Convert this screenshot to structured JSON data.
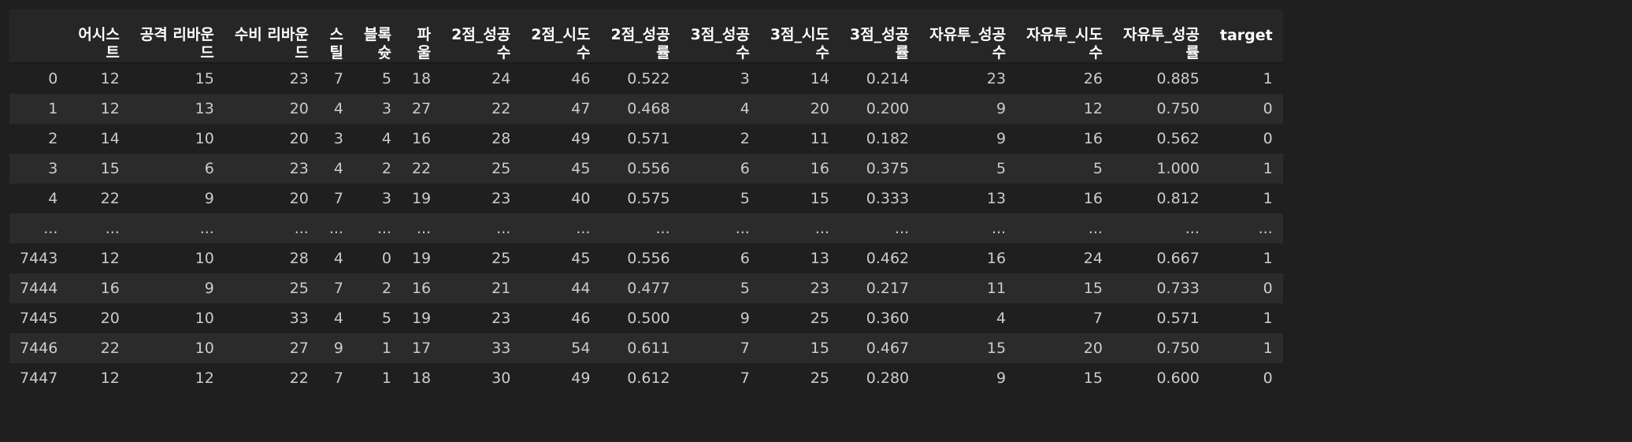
{
  "table": {
    "columns": [
      {
        "lines": [
          ""
        ]
      },
      {
        "lines": [
          "어시스",
          "트"
        ]
      },
      {
        "lines": [
          "공격 리바운",
          "드"
        ]
      },
      {
        "lines": [
          "수비 리바운",
          "드"
        ]
      },
      {
        "lines": [
          "스",
          "틸"
        ]
      },
      {
        "lines": [
          "블록",
          "슛"
        ]
      },
      {
        "lines": [
          "파",
          "울"
        ]
      },
      {
        "lines": [
          "2점_성공",
          "수"
        ]
      },
      {
        "lines": [
          "2점_시도",
          "수"
        ]
      },
      {
        "lines": [
          "2점_성공",
          "률"
        ]
      },
      {
        "lines": [
          "3점_성공",
          "수"
        ]
      },
      {
        "lines": [
          "3점_시도",
          "수"
        ]
      },
      {
        "lines": [
          "3점_성공",
          "률"
        ]
      },
      {
        "lines": [
          "자유투_성공",
          "수"
        ]
      },
      {
        "lines": [
          "자유투_시도",
          "수"
        ]
      },
      {
        "lines": [
          "자유투_성공",
          "률"
        ]
      },
      {
        "lines": [
          "target"
        ]
      }
    ],
    "rows": [
      [
        "0",
        "12",
        "15",
        "23",
        "7",
        "5",
        "18",
        "24",
        "46",
        "0.522",
        "3",
        "14",
        "0.214",
        "23",
        "26",
        "0.885",
        "1"
      ],
      [
        "1",
        "12",
        "13",
        "20",
        "4",
        "3",
        "27",
        "22",
        "47",
        "0.468",
        "4",
        "20",
        "0.200",
        "9",
        "12",
        "0.750",
        "0"
      ],
      [
        "2",
        "14",
        "10",
        "20",
        "3",
        "4",
        "16",
        "28",
        "49",
        "0.571",
        "2",
        "11",
        "0.182",
        "9",
        "16",
        "0.562",
        "0"
      ],
      [
        "3",
        "15",
        "6",
        "23",
        "4",
        "2",
        "22",
        "25",
        "45",
        "0.556",
        "6",
        "16",
        "0.375",
        "5",
        "5",
        "1.000",
        "1"
      ],
      [
        "4",
        "22",
        "9",
        "20",
        "7",
        "3",
        "19",
        "23",
        "40",
        "0.575",
        "5",
        "15",
        "0.333",
        "13",
        "16",
        "0.812",
        "1"
      ],
      [
        "...",
        "...",
        "...",
        "...",
        "...",
        "...",
        "...",
        "...",
        "...",
        "...",
        "...",
        "...",
        "...",
        "...",
        "...",
        "...",
        "..."
      ],
      [
        "7443",
        "12",
        "10",
        "28",
        "4",
        "0",
        "19",
        "25",
        "45",
        "0.556",
        "6",
        "13",
        "0.462",
        "16",
        "24",
        "0.667",
        "1"
      ],
      [
        "7444",
        "16",
        "9",
        "25",
        "7",
        "2",
        "16",
        "21",
        "44",
        "0.477",
        "5",
        "23",
        "0.217",
        "11",
        "15",
        "0.733",
        "0"
      ],
      [
        "7445",
        "20",
        "10",
        "33",
        "4",
        "5",
        "19",
        "23",
        "46",
        "0.500",
        "9",
        "25",
        "0.360",
        "4",
        "7",
        "0.571",
        "1"
      ],
      [
        "7446",
        "22",
        "10",
        "27",
        "9",
        "1",
        "17",
        "33",
        "54",
        "0.611",
        "7",
        "15",
        "0.467",
        "15",
        "20",
        "0.750",
        "1"
      ],
      [
        "7447",
        "12",
        "12",
        "22",
        "7",
        "1",
        "18",
        "30",
        "49",
        "0.612",
        "7",
        "25",
        "0.280",
        "9",
        "15",
        "0.600",
        "0"
      ]
    ]
  }
}
